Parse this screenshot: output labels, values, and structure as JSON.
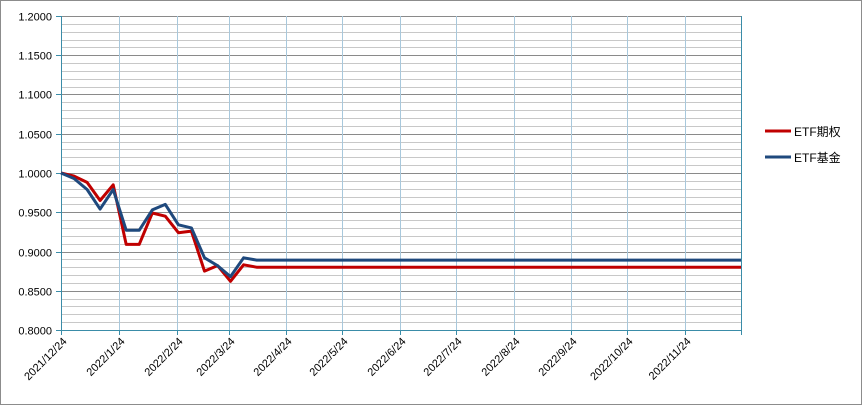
{
  "chart_data": {
    "type": "line",
    "title": "",
    "xlabel": "",
    "ylabel": "",
    "ylim": [
      0.8,
      1.2
    ],
    "y_ticks": [
      "0.8000",
      "0.8500",
      "0.9000",
      "0.9500",
      "1.0000",
      "1.0500",
      "1.1000",
      "1.1500",
      "1.2000"
    ],
    "xlim": [
      "2021/12/24",
      "2022/12/24"
    ],
    "x_ticks": [
      "2021/12/24",
      "2022/1/24",
      "2022/2/24",
      "2022/3/24",
      "2022/4/24",
      "2022/5/24",
      "2022/6/24",
      "2022/7/24",
      "2022/8/24",
      "2022/9/24",
      "2022/10/24",
      "2022/11/24"
    ],
    "grid": true,
    "legend_position": "right",
    "x": [
      "2021/12/24",
      "2021/12/31",
      "2022/1/7",
      "2022/1/14",
      "2022/1/21",
      "2022/1/28",
      "2022/2/4",
      "2022/2/11",
      "2022/2/18",
      "2022/2/25",
      "2022/3/4",
      "2022/3/11",
      "2022/3/18",
      "2022/3/25",
      "2022/4/1",
      "2022/4/8",
      "2022/12/24"
    ],
    "series": [
      {
        "name": "ETF期权",
        "color": "#c00000",
        "values": [
          1.0,
          0.996,
          0.988,
          0.965,
          0.985,
          0.909,
          0.909,
          0.949,
          0.945,
          0.924,
          0.926,
          0.875,
          0.882,
          0.862,
          0.883,
          0.88,
          0.88
        ]
      },
      {
        "name": "ETF基金",
        "color": "#1f497d",
        "values": [
          1.0,
          0.993,
          0.979,
          0.954,
          0.979,
          0.927,
          0.927,
          0.953,
          0.96,
          0.934,
          0.93,
          0.892,
          0.882,
          0.868,
          0.892,
          0.889,
          0.889
        ]
      }
    ]
  }
}
